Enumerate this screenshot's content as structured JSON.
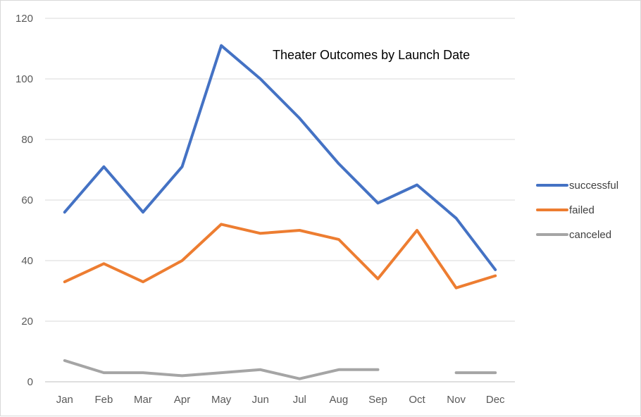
{
  "chart_data": {
    "type": "line",
    "title": "Theater Outcomes by Launch Date",
    "xlabel": "",
    "ylabel": "",
    "categories": [
      "Jan",
      "Feb",
      "Mar",
      "Apr",
      "May",
      "Jun",
      "Jul",
      "Aug",
      "Sep",
      "Oct",
      "Nov",
      "Dec"
    ],
    "ylim": [
      0,
      120
    ],
    "yticks": [
      "0",
      "20",
      "40",
      "60",
      "80",
      "100",
      "120"
    ],
    "grid": true,
    "legend_position": "right",
    "series": [
      {
        "name": "successful",
        "color": "#4472C4",
        "values": [
          56,
          71,
          56,
          71,
          111,
          100,
          87,
          72,
          59,
          65,
          54,
          37
        ]
      },
      {
        "name": "failed",
        "color": "#ED7D31",
        "values": [
          33,
          39,
          33,
          40,
          52,
          49,
          50,
          47,
          34,
          50,
          31,
          35
        ]
      },
      {
        "name": "canceled",
        "color": "#A5A5A5",
        "values": [
          7,
          3,
          3,
          2,
          3,
          4,
          1,
          4,
          4,
          null,
          3,
          3
        ]
      }
    ]
  }
}
